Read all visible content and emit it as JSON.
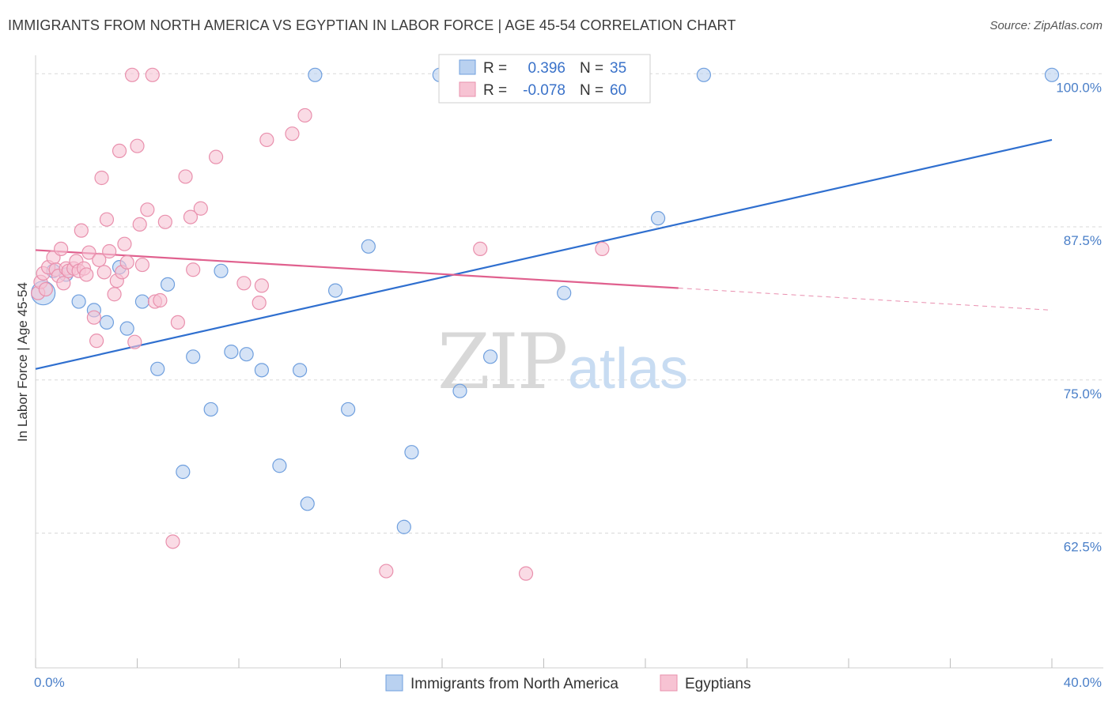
{
  "title": "IMMIGRANTS FROM NORTH AMERICA VS EGYPTIAN IN LABOR FORCE | AGE 45-54 CORRELATION CHART",
  "source": "Source: ZipAtlas.com",
  "watermark": {
    "zip": "ZIP",
    "atlas": "atlas"
  },
  "colors": {
    "blue_fill": "#b9d1f0",
    "blue_stroke": "#6f9fde",
    "blue_line": "#2f6fcf",
    "pink_fill": "#f7c3d3",
    "pink_stroke": "#e990ad",
    "pink_line": "#e0608e",
    "grid": "#d9d9d9",
    "axis_label": "#4a7fc8"
  },
  "legend": {
    "rows": [
      {
        "r_label": "R =",
        "r_value": "0.396",
        "n_label": "N =",
        "n_value": "35"
      },
      {
        "r_label": "R =",
        "r_value": "-0.078",
        "n_label": "N =",
        "n_value": "60"
      }
    ]
  },
  "chart_data": {
    "type": "scatter",
    "title": "IMMIGRANTS FROM NORTH AMERICA VS EGYPTIAN IN LABOR FORCE | AGE 45-54 CORRELATION CHART",
    "xlabel": "",
    "ylabel": "In Labor Force | Age 45-54",
    "xlim": [
      0,
      40
    ],
    "ylim": [
      51.5,
      101.5
    ],
    "x_tick_labels": [
      "0.0%",
      "40.0%"
    ],
    "y_ticks": [
      62.5,
      75.0,
      87.5,
      100.0
    ],
    "y_tick_labels": [
      "62.5%",
      "75.0%",
      "87.5%",
      "100.0%"
    ],
    "grid": true,
    "legend_position": "bottom",
    "series": [
      {
        "name": "Immigrants from North America",
        "color": "#6f9fde",
        "trend": {
          "x": [
            0,
            40
          ],
          "y": [
            75.9,
            94.6
          ]
        },
        "points": [
          {
            "x": 0.3,
            "y": 82.1
          },
          {
            "x": 0.7,
            "y": 83.9
          },
          {
            "x": 1.2,
            "y": 83.6
          },
          {
            "x": 1.7,
            "y": 81.4
          },
          {
            "x": 2.3,
            "y": 80.7
          },
          {
            "x": 2.8,
            "y": 79.7
          },
          {
            "x": 3.3,
            "y": 84.2
          },
          {
            "x": 3.6,
            "y": 79.2
          },
          {
            "x": 4.2,
            "y": 81.4
          },
          {
            "x": 4.8,
            "y": 75.9
          },
          {
            "x": 5.2,
            "y": 82.8
          },
          {
            "x": 5.8,
            "y": 67.5
          },
          {
            "x": 6.2,
            "y": 76.9
          },
          {
            "x": 6.9,
            "y": 72.6
          },
          {
            "x": 7.3,
            "y": 83.9
          },
          {
            "x": 7.7,
            "y": 77.3
          },
          {
            "x": 8.3,
            "y": 77.1
          },
          {
            "x": 8.9,
            "y": 75.8
          },
          {
            "x": 9.6,
            "y": 68.0
          },
          {
            "x": 10.4,
            "y": 75.8
          },
          {
            "x": 10.7,
            "y": 64.9
          },
          {
            "x": 11.0,
            "y": 99.9
          },
          {
            "x": 11.8,
            "y": 82.3
          },
          {
            "x": 12.3,
            "y": 72.6
          },
          {
            "x": 13.1,
            "y": 85.9
          },
          {
            "x": 14.5,
            "y": 63.0
          },
          {
            "x": 14.8,
            "y": 69.1
          },
          {
            "x": 15.9,
            "y": 99.9
          },
          {
            "x": 16.7,
            "y": 74.1
          },
          {
            "x": 17.4,
            "y": 99.9
          },
          {
            "x": 17.9,
            "y": 76.9
          },
          {
            "x": 20.8,
            "y": 82.1
          },
          {
            "x": 24.5,
            "y": 88.2
          },
          {
            "x": 26.3,
            "y": 99.9
          },
          {
            "x": 40.0,
            "y": 99.9
          }
        ]
      },
      {
        "name": "Egyptians",
        "color": "#e990ad",
        "trend": {
          "x": [
            0,
            25.3,
            40
          ],
          "y": [
            85.6,
            82.5,
            80.7
          ]
        },
        "points": [
          {
            "x": 0.1,
            "y": 82.1
          },
          {
            "x": 0.2,
            "y": 83.0
          },
          {
            "x": 0.3,
            "y": 83.7
          },
          {
            "x": 0.4,
            "y": 82.4
          },
          {
            "x": 0.5,
            "y": 84.2
          },
          {
            "x": 0.7,
            "y": 85.0
          },
          {
            "x": 0.8,
            "y": 84.0
          },
          {
            "x": 0.9,
            "y": 83.5
          },
          {
            "x": 1.0,
            "y": 85.7
          },
          {
            "x": 1.1,
            "y": 82.9
          },
          {
            "x": 1.2,
            "y": 84.1
          },
          {
            "x": 1.3,
            "y": 83.9
          },
          {
            "x": 1.5,
            "y": 84.1
          },
          {
            "x": 1.6,
            "y": 84.7
          },
          {
            "x": 1.7,
            "y": 83.9
          },
          {
            "x": 1.8,
            "y": 87.2
          },
          {
            "x": 1.9,
            "y": 84.1
          },
          {
            "x": 2.0,
            "y": 83.6
          },
          {
            "x": 2.1,
            "y": 85.4
          },
          {
            "x": 2.3,
            "y": 80.1
          },
          {
            "x": 2.4,
            "y": 78.2
          },
          {
            "x": 2.5,
            "y": 84.8
          },
          {
            "x": 2.6,
            "y": 91.5
          },
          {
            "x": 2.7,
            "y": 83.8
          },
          {
            "x": 2.8,
            "y": 88.1
          },
          {
            "x": 2.9,
            "y": 85.5
          },
          {
            "x": 3.1,
            "y": 82.0
          },
          {
            "x": 3.2,
            "y": 83.1
          },
          {
            "x": 3.3,
            "y": 93.7
          },
          {
            "x": 3.4,
            "y": 83.8
          },
          {
            "x": 3.5,
            "y": 86.1
          },
          {
            "x": 3.6,
            "y": 84.6
          },
          {
            "x": 3.8,
            "y": 99.9
          },
          {
            "x": 3.9,
            "y": 78.1
          },
          {
            "x": 4.0,
            "y": 94.1
          },
          {
            "x": 4.1,
            "y": 87.7
          },
          {
            "x": 4.2,
            "y": 84.4
          },
          {
            "x": 4.4,
            "y": 88.9
          },
          {
            "x": 4.6,
            "y": 99.9
          },
          {
            "x": 4.7,
            "y": 81.4
          },
          {
            "x": 4.9,
            "y": 81.5
          },
          {
            "x": 5.1,
            "y": 87.9
          },
          {
            "x": 5.4,
            "y": 61.8
          },
          {
            "x": 5.6,
            "y": 79.7
          },
          {
            "x": 5.9,
            "y": 91.6
          },
          {
            "x": 6.1,
            "y": 88.3
          },
          {
            "x": 6.2,
            "y": 84.0
          },
          {
            "x": 6.5,
            "y": 89.0
          },
          {
            "x": 7.1,
            "y": 93.2
          },
          {
            "x": 8.2,
            "y": 82.9
          },
          {
            "x": 8.8,
            "y": 81.3
          },
          {
            "x": 8.9,
            "y": 82.7
          },
          {
            "x": 9.1,
            "y": 94.6
          },
          {
            "x": 10.1,
            "y": 95.1
          },
          {
            "x": 10.6,
            "y": 96.6
          },
          {
            "x": 13.8,
            "y": 59.4
          },
          {
            "x": 17.5,
            "y": 85.7
          },
          {
            "x": 17.9,
            "y": 99.9
          },
          {
            "x": 19.3,
            "y": 59.2
          },
          {
            "x": 22.3,
            "y": 85.7
          }
        ]
      }
    ]
  }
}
